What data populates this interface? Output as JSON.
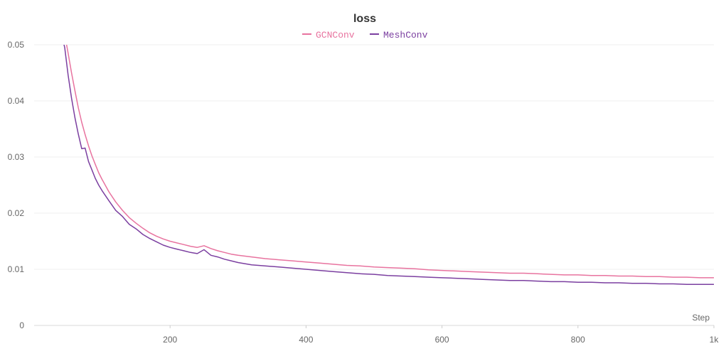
{
  "chart_data": {
    "type": "line",
    "title": "loss",
    "xlabel": "Step",
    "ylabel": "",
    "xlim": [
      0,
      1000
    ],
    "ylim": [
      0,
      0.05
    ],
    "x_ticks": [
      200,
      400,
      600,
      800,
      1000
    ],
    "x_tick_labels": [
      "200",
      "400",
      "600",
      "800",
      "1k"
    ],
    "y_ticks": [
      0,
      0.01,
      0.02,
      0.03,
      0.04,
      0.05
    ],
    "y_tick_labels": [
      "0",
      "0.01",
      "0.02",
      "0.03",
      "0.04",
      "0.05"
    ],
    "grid": true,
    "legend_position": "top-center",
    "series": [
      {
        "name": "GCNConv",
        "color": "#e8739f",
        "x": [
          47,
          50,
          55,
          60,
          65,
          70,
          75,
          80,
          85,
          90,
          95,
          100,
          110,
          120,
          130,
          140,
          150,
          160,
          170,
          180,
          190,
          200,
          210,
          220,
          230,
          240,
          250,
          260,
          270,
          280,
          290,
          300,
          320,
          340,
          360,
          380,
          400,
          420,
          440,
          460,
          480,
          500,
          520,
          540,
          560,
          580,
          600,
          620,
          640,
          660,
          680,
          700,
          720,
          740,
          760,
          780,
          800,
          820,
          840,
          860,
          880,
          900,
          920,
          940,
          960,
          980,
          1000
        ],
        "y": [
          0.0505,
          0.0485,
          0.045,
          0.0418,
          0.0388,
          0.0362,
          0.034,
          0.032,
          0.0302,
          0.0287,
          0.0272,
          0.026,
          0.0238,
          0.022,
          0.0205,
          0.0192,
          0.0182,
          0.0173,
          0.0165,
          0.0159,
          0.0154,
          0.015,
          0.0147,
          0.0144,
          0.0141,
          0.0139,
          0.0142,
          0.0137,
          0.0133,
          0.013,
          0.0127,
          0.0125,
          0.0122,
          0.0119,
          0.0117,
          0.0115,
          0.0113,
          0.0111,
          0.0109,
          0.0107,
          0.0106,
          0.0104,
          0.0103,
          0.0102,
          0.0101,
          0.0099,
          0.0098,
          0.0097,
          0.0096,
          0.0095,
          0.0094,
          0.0093,
          0.0093,
          0.0092,
          0.0091,
          0.009,
          0.009,
          0.0089,
          0.0089,
          0.0088,
          0.0088,
          0.0087,
          0.0087,
          0.0086,
          0.0086,
          0.0085,
          0.0085
        ]
      },
      {
        "name": "MeshConv",
        "color": "#7b3fa0",
        "x": [
          43,
          45,
          50,
          55,
          60,
          65,
          70,
          75,
          80,
          85,
          90,
          95,
          100,
          110,
          120,
          130,
          140,
          150,
          160,
          170,
          180,
          190,
          200,
          210,
          220,
          230,
          240,
          250,
          260,
          270,
          280,
          290,
          300,
          320,
          340,
          360,
          380,
          400,
          420,
          440,
          460,
          480,
          500,
          520,
          540,
          560,
          580,
          600,
          620,
          640,
          660,
          680,
          700,
          720,
          740,
          760,
          780,
          800,
          820,
          840,
          860,
          880,
          900,
          920,
          940,
          960,
          980,
          1000
        ],
        "y": [
          0.0505,
          0.0495,
          0.0446,
          0.0405,
          0.037,
          0.0341,
          0.0315,
          0.0316,
          0.0292,
          0.0277,
          0.0262,
          0.025,
          0.024,
          0.0222,
          0.0205,
          0.0194,
          0.018,
          0.0172,
          0.0162,
          0.0155,
          0.0149,
          0.0143,
          0.0139,
          0.0136,
          0.0133,
          0.013,
          0.0128,
          0.0135,
          0.0125,
          0.0122,
          0.0118,
          0.0115,
          0.0112,
          0.0108,
          0.0106,
          0.0104,
          0.0102,
          0.01,
          0.0098,
          0.0096,
          0.0094,
          0.0092,
          0.0091,
          0.0089,
          0.0088,
          0.0087,
          0.0086,
          0.0085,
          0.0084,
          0.0083,
          0.0082,
          0.0081,
          0.008,
          0.008,
          0.0079,
          0.0078,
          0.0078,
          0.0077,
          0.0077,
          0.0076,
          0.0076,
          0.0075,
          0.0075,
          0.0074,
          0.0074,
          0.0073,
          0.0073,
          0.0073
        ]
      }
    ]
  }
}
